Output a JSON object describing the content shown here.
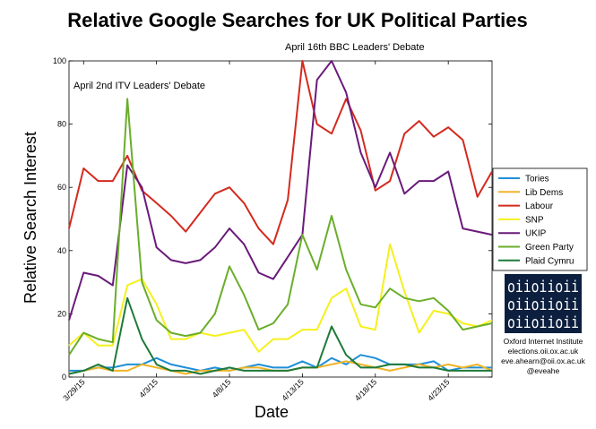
{
  "colors": {
    "Tories": "#1f8fd8",
    "Lib Dems": "#f0b428",
    "Labour": "#d42a1e",
    "SNP": "#f5f01e",
    "UKIP": "#6a1a7a",
    "Green Party": "#6aae2a",
    "Plaid Cymru": "#1e7a3a",
    "logo_bg": "#0d1f3f"
  },
  "credit": {
    "logo_rows": [
      "oiioiioii",
      "oiioiioii",
      "oiioiioii"
    ],
    "line1": "Oxford Internet Institute",
    "line2": "elections.oii.ox.ac.uk",
    "line3": "eve.ahearn@oii.ox.ac.uk",
    "line4": "@eveahe"
  },
  "chart_data": {
    "type": "line",
    "title": "Relative Google Searches for UK Political Parties",
    "xlabel": "Date",
    "ylabel": "Relative  Search Interest",
    "ylim": [
      0,
      100
    ],
    "yticks": [
      0,
      20,
      40,
      60,
      80,
      100
    ],
    "x": [
      "2015-03-28",
      "2015-03-29",
      "2015-03-30",
      "2015-03-31",
      "2015-04-01",
      "2015-04-02",
      "2015-04-03",
      "2015-04-04",
      "2015-04-05",
      "2015-04-06",
      "2015-04-07",
      "2015-04-08",
      "2015-04-09",
      "2015-04-10",
      "2015-04-11",
      "2015-04-12",
      "2015-04-13",
      "2015-04-14",
      "2015-04-15",
      "2015-04-16",
      "2015-04-17",
      "2015-04-18",
      "2015-04-19",
      "2015-04-20",
      "2015-04-21",
      "2015-04-22",
      "2015-04-23",
      "2015-04-24",
      "2015-04-25",
      "2015-04-26"
    ],
    "xticks": [
      {
        "label": "3/29/15",
        "date": "2015-03-29"
      },
      {
        "label": "4/3/15",
        "date": "2015-04-03"
      },
      {
        "label": "4/8/15",
        "date": "2015-04-08"
      },
      {
        "label": "4/13/15",
        "date": "2015-04-13"
      },
      {
        "label": "4/18/15",
        "date": "2015-04-18"
      },
      {
        "label": "4/23/15",
        "date": "2015-04-23"
      }
    ],
    "grid": false,
    "legend_position": "right",
    "series": [
      {
        "name": "Tories",
        "values": [
          2,
          2,
          3,
          3,
          4,
          4,
          6,
          4,
          3,
          2,
          3,
          2,
          3,
          4,
          3,
          3,
          5,
          3,
          6,
          4,
          7,
          6,
          4,
          4,
          4,
          5,
          2,
          3,
          3,
          3
        ]
      },
      {
        "name": "Lib Dems",
        "values": [
          1,
          2,
          3,
          2,
          2,
          4,
          3,
          2,
          1,
          2,
          2,
          2,
          3,
          3,
          2,
          2,
          3,
          3,
          4,
          5,
          4,
          3,
          2,
          3,
          4,
          3,
          4,
          3,
          4,
          2
        ]
      },
      {
        "name": "Labour",
        "values": [
          47,
          66,
          62,
          62,
          70,
          59,
          55,
          51,
          46,
          52,
          58,
          60,
          55,
          47,
          42,
          56,
          100,
          80,
          77,
          88,
          78,
          59,
          62,
          77,
          81,
          76,
          79,
          75,
          57,
          65
        ]
      },
      {
        "name": "SNP",
        "values": [
          10,
          14,
          10,
          10,
          29,
          31,
          23,
          12,
          12,
          14,
          13,
          14,
          15,
          8,
          12,
          12,
          15,
          15,
          25,
          28,
          16,
          15,
          42,
          27,
          14,
          21,
          20,
          17,
          16,
          18
        ]
      },
      {
        "name": "UKIP",
        "values": [
          18,
          33,
          32,
          29,
          67,
          60,
          41,
          37,
          36,
          37,
          41,
          47,
          42,
          33,
          31,
          38,
          45,
          94,
          100,
          90,
          71,
          60,
          71,
          58,
          62,
          62,
          65,
          47,
          46,
          45
        ]
      },
      {
        "name": "Green Party",
        "values": [
          7,
          14,
          12,
          11,
          88,
          30,
          18,
          14,
          13,
          14,
          20,
          35,
          26,
          15,
          17,
          23,
          45,
          34,
          51,
          34,
          23,
          22,
          28,
          25,
          24,
          25,
          21,
          15,
          16,
          17
        ]
      },
      {
        "name": "Plaid Cymru",
        "values": [
          1,
          2,
          4,
          2,
          25,
          12,
          4,
          2,
          2,
          1,
          2,
          3,
          2,
          2,
          2,
          2,
          3,
          3,
          16,
          7,
          3,
          3,
          4,
          4,
          3,
          3,
          2,
          2,
          2,
          2
        ]
      }
    ],
    "annotations": [
      {
        "text": "April 2nd ITV Leaders' Debate",
        "date": "2015-04-02"
      },
      {
        "text": "April 16th BBC Leaders' Debate",
        "date": "2015-04-16"
      }
    ]
  }
}
